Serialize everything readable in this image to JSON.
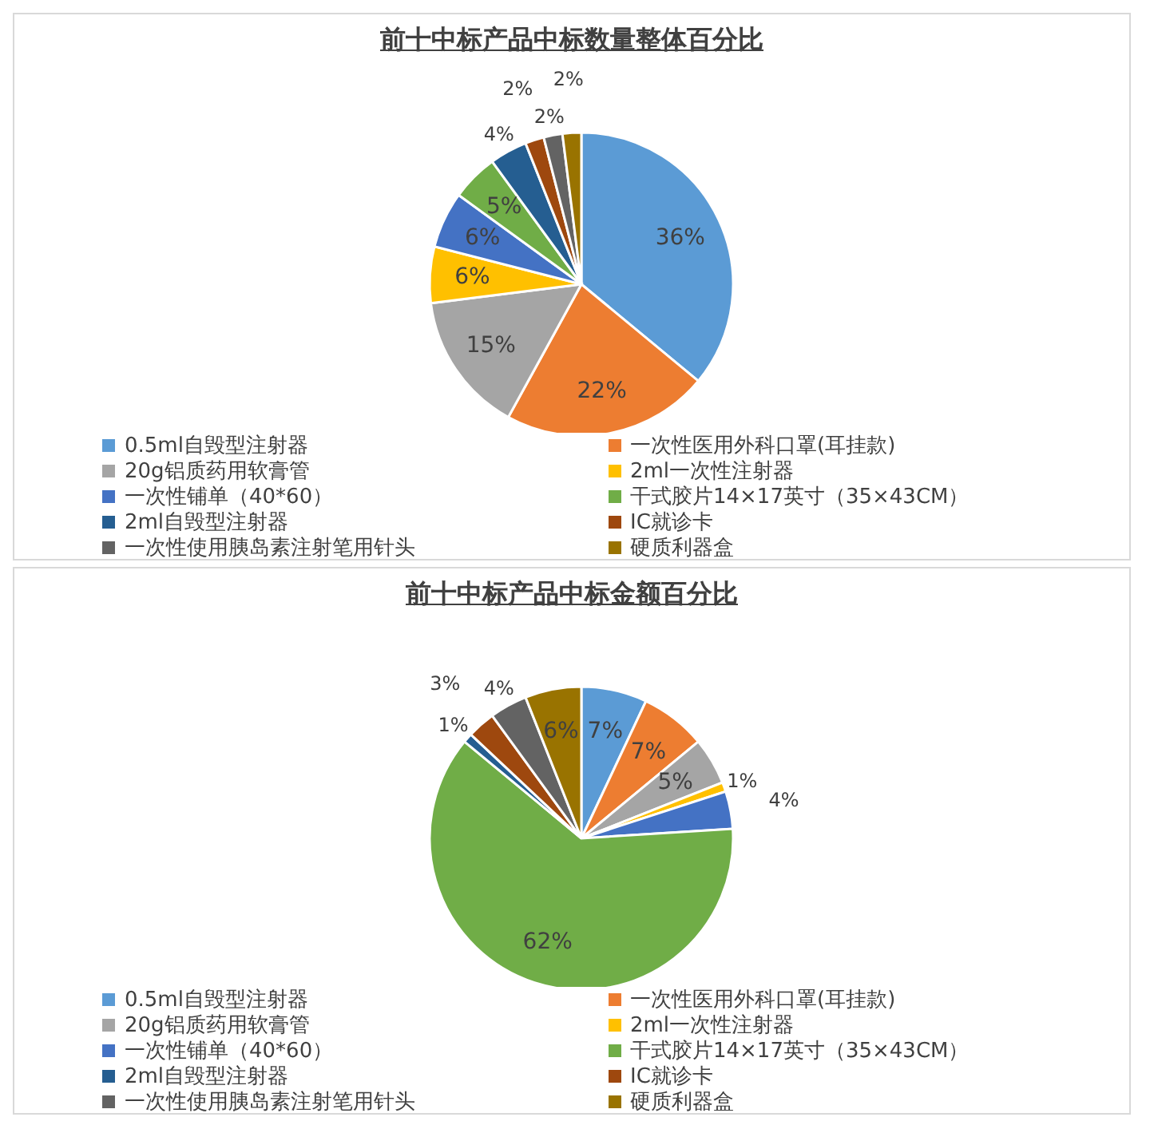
{
  "chart_data": [
    {
      "type": "pie",
      "title": "前十中标产品中标数量整体百分比",
      "categories": [
        "0.5ml自毁型注射器",
        "一次性医用外科口罩(耳挂款)",
        "20g铝质药用软膏管",
        "2ml一次性注射器",
        "一次性铺单（40*60）",
        "干式胶片14×17英寸（35×43CM）",
        "2ml自毁型注射器",
        "IC就诊卡",
        "一次性使用胰岛素注射笔用针头",
        "硬质利器盒"
      ],
      "values": [
        36,
        22,
        15,
        6,
        6,
        5,
        4,
        2,
        2,
        2
      ],
      "value_labels": [
        "36%",
        "22%",
        "15%",
        "6%",
        "6%",
        "5%",
        "4%",
        "2%",
        "2%",
        "2%"
      ],
      "colors": [
        "#5b9bd5",
        "#ed7d31",
        "#a5a5a5",
        "#ffc000",
        "#4472c4",
        "#70ad47",
        "#255e91",
        "#9e480e",
        "#636363",
        "#997300"
      ],
      "legend": "bottom"
    },
    {
      "type": "pie",
      "title": "前十中标产品中标金额百分比",
      "categories": [
        "0.5ml自毁型注射器",
        "一次性医用外科口罩(耳挂款)",
        "20g铝质药用软膏管",
        "2ml一次性注射器",
        "一次性铺单（40*60）",
        "干式胶片14×17英寸（35×43CM）",
        "2ml自毁型注射器",
        "IC就诊卡",
        "一次性使用胰岛素注射笔用针头",
        "硬质利器盒"
      ],
      "values": [
        7,
        7,
        5,
        1,
        4,
        62,
        1,
        3,
        4,
        6
      ],
      "value_labels": [
        "7%",
        "7%",
        "5%",
        "1%",
        "4%",
        "62%",
        "1%",
        "3%",
        "4%",
        "6%"
      ],
      "colors": [
        "#5b9bd5",
        "#ed7d31",
        "#a5a5a5",
        "#ffc000",
        "#4472c4",
        "#70ad47",
        "#255e91",
        "#9e480e",
        "#636363",
        "#997300"
      ],
      "legend": "bottom"
    }
  ]
}
